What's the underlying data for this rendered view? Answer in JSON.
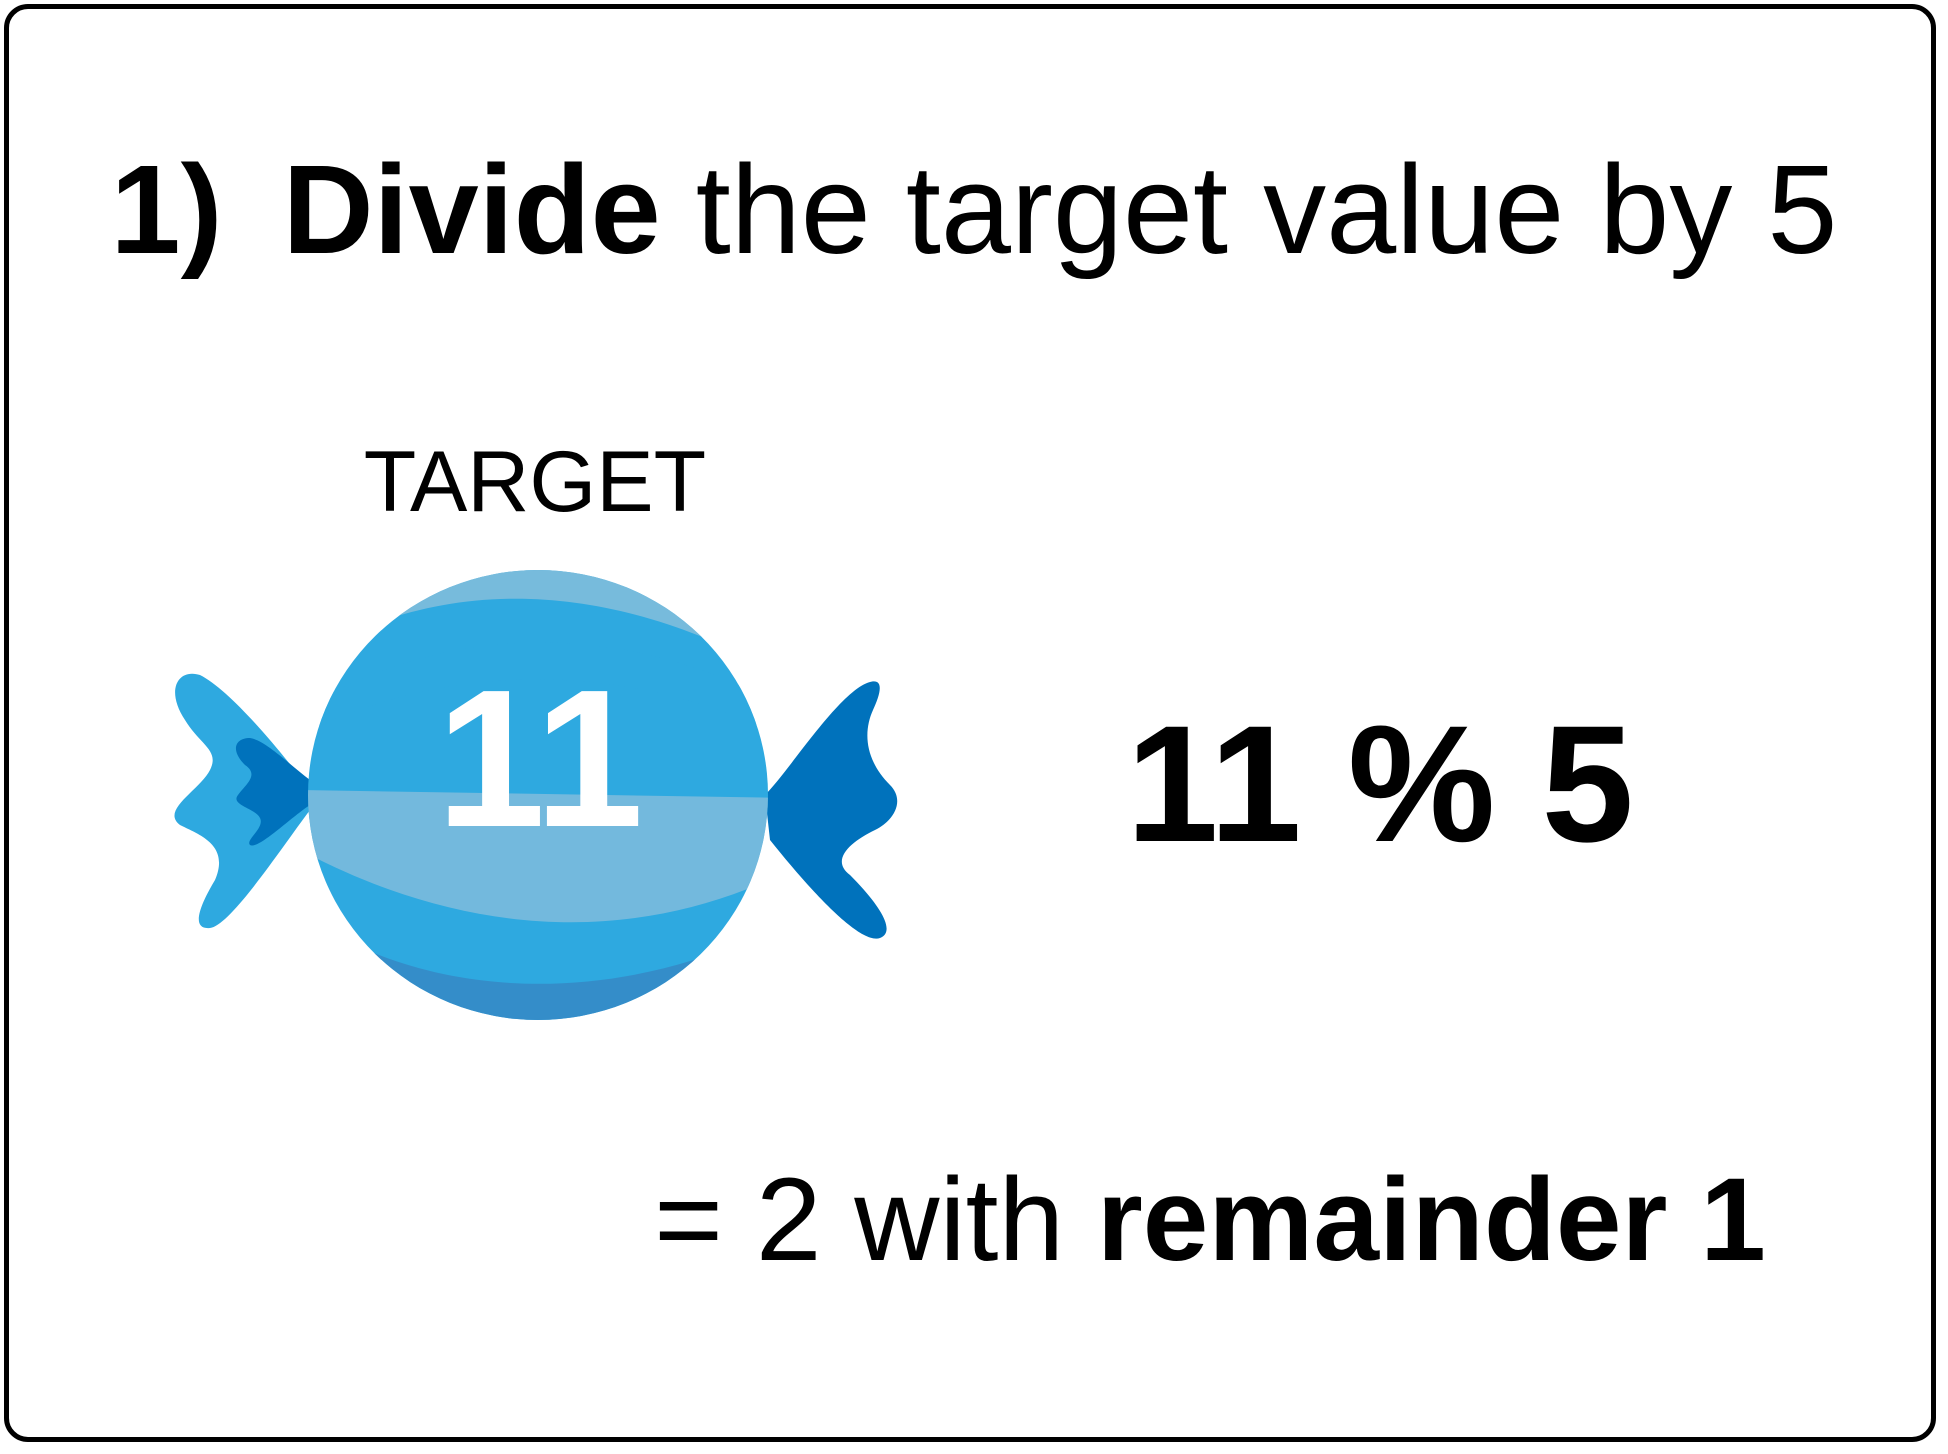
{
  "heading": {
    "step": "1)",
    "verb": "Divide",
    "rest": "the target value by 5"
  },
  "target": {
    "label": "TARGET",
    "value": "11"
  },
  "expression": "11  %  5",
  "result": {
    "prefix": "= 2 with",
    "emphasis": "remainder 1"
  },
  "colors": {
    "candy_light": "#2ea9e0",
    "candy_dark": "#0072bc",
    "candy_highlight": "#7fbcdc",
    "candy_shade": "#3589c6"
  }
}
